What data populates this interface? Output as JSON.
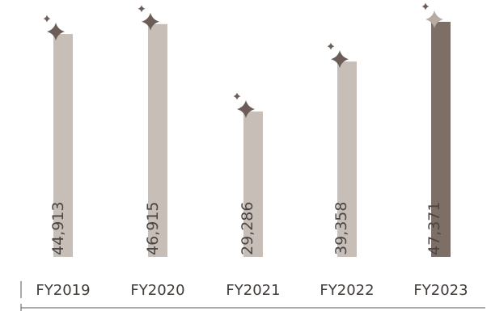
{
  "chart_data": {
    "type": "bar",
    "categories": [
      "FY2019",
      "FY2020",
      "FY2021",
      "FY2022",
      "FY2023"
    ],
    "values": [
      44913,
      46915,
      29286,
      39358,
      47371
    ],
    "value_labels": [
      "44,913",
      "46,915",
      "29,286",
      "39,358",
      "47,371"
    ],
    "highlight_index": 4,
    "ylim": [
      0,
      50000
    ],
    "grid": false,
    "legend": "none",
    "colors": {
      "bar": "#c8beb8",
      "highlight": "#7d6e66",
      "sparkle": "#6b5d57",
      "axis": "#555555"
    },
    "icons": [
      "sparkle-icon"
    ]
  }
}
